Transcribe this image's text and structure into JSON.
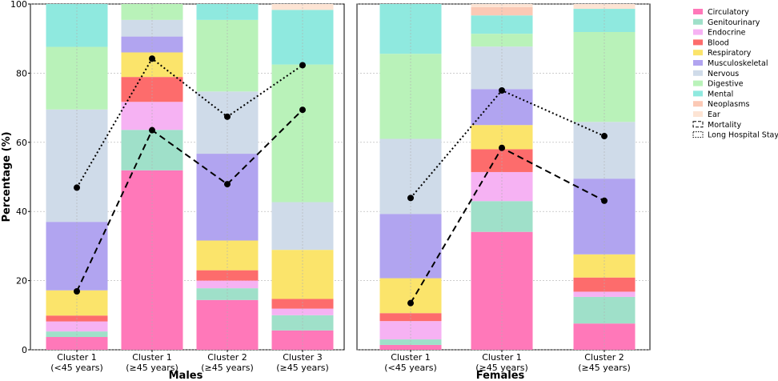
{
  "chart_data": {
    "type": "bar",
    "stacked": true,
    "ylabel": "Percentage (%)",
    "ylim": [
      0,
      100
    ],
    "yticks": [
      0,
      20,
      40,
      60,
      80,
      100
    ],
    "grid": true,
    "legend_position": "right",
    "categories_order": [
      "Circulatory",
      "Genitourinary",
      "Endocrine",
      "Blood",
      "Respiratory",
      "Musculoskeletal",
      "Nervous",
      "Digestive",
      "Mental",
      "Neoplasms",
      "Ear"
    ],
    "colors": {
      "Circulatory": "#ff78b9",
      "Genitourinary": "#9fe0c9",
      "Endocrine": "#f6b2f3",
      "Blood": "#fd6c6c",
      "Respiratory": "#fbe46b",
      "Musculoskeletal": "#b1a4f0",
      "Nervous": "#cfdbe9",
      "Digestive": "#b9f2b9",
      "Mental": "#8fe9df",
      "Neoplasms": "#fbc9b5",
      "Ear": "#fde4d4"
    },
    "legend_line_labels": [
      "Mortality",
      "Long Hospital Stay"
    ],
    "panels": [
      {
        "xlabel": "Males",
        "groups": [
          {
            "label": [
              "Cluster 1",
              "(<45 years)"
            ],
            "segments": {
              "Circulatory": 3.7,
              "Genitourinary": 1.6,
              "Endocrine": 2.9,
              "Blood": 1.7,
              "Respiratory": 7.3,
              "Musculoskeletal": 19.8,
              "Nervous": 32.5,
              "Digestive": 18.1,
              "Mental": 12.4,
              "Neoplasms": 0,
              "Ear": 0
            },
            "mortality": 16.9,
            "long_stay": 46.9
          },
          {
            "label": [
              "Cluster 1",
              "(≥45 years)"
            ],
            "segments": {
              "Circulatory": 51.9,
              "Genitourinary": 11.7,
              "Endocrine": 8.1,
              "Blood": 7.2,
              "Respiratory": 7.1,
              "Musculoskeletal": 4.6,
              "Nervous": 4.8,
              "Digestive": 4.6,
              "Mental": 0,
              "Neoplasms": 0,
              "Ear": 0
            },
            "mortality": 63.5,
            "long_stay": 84.2
          },
          {
            "label": [
              "Cluster 2",
              "(≥45 years)"
            ],
            "segments": {
              "Circulatory": 14.4,
              "Genitourinary": 3.4,
              "Endocrine": 2.2,
              "Blood": 3.0,
              "Respiratory": 8.6,
              "Musculoskeletal": 25.1,
              "Nervous": 18.0,
              "Digestive": 20.7,
              "Mental": 4.6,
              "Neoplasms": 0,
              "Ear": 0
            },
            "mortality": 47.9,
            "long_stay": 67.4
          },
          {
            "label": [
              "Cluster 3",
              "(≥45 years)"
            ],
            "segments": {
              "Circulatory": 5.6,
              "Genitourinary": 4.4,
              "Endocrine": 1.9,
              "Blood": 2.8,
              "Respiratory": 14.2,
              "Musculoskeletal": 0,
              "Nervous": 13.8,
              "Digestive": 39.8,
              "Mental": 15.8,
              "Neoplasms": 0,
              "Ear": 1.7
            },
            "mortality": 69.4,
            "long_stay": 82.3
          }
        ]
      },
      {
        "xlabel": "Females",
        "groups": [
          {
            "label": [
              "Cluster 1",
              "(<45 years)"
            ],
            "segments": {
              "Circulatory": 1.4,
              "Genitourinary": 1.6,
              "Endocrine": 5.3,
              "Blood": 2.3,
              "Respiratory": 10.1,
              "Musculoskeletal": 18.6,
              "Nervous": 21.7,
              "Digestive": 24.6,
              "Mental": 14.4,
              "Neoplasms": 0,
              "Ear": 0
            },
            "mortality": 13.5,
            "long_stay": 43.9
          },
          {
            "label": [
              "Cluster 1",
              "(≥45 years)"
            ],
            "segments": {
              "Circulatory": 34.1,
              "Genitourinary": 8.9,
              "Endocrine": 8.4,
              "Blood": 6.6,
              "Respiratory": 7.0,
              "Musculoskeletal": 10.4,
              "Nervous": 12.3,
              "Digestive": 3.7,
              "Mental": 5.3,
              "Neoplasms": 2.4,
              "Ear": 0.9
            },
            "mortality": 58.4,
            "long_stay": 75.0
          },
          {
            "label": [
              "Cluster 2",
              "(≥45 years)"
            ],
            "segments": {
              "Circulatory": 7.6,
              "Genitourinary": 7.7,
              "Endocrine": 1.5,
              "Blood": 4.1,
              "Respiratory": 6.7,
              "Musculoskeletal": 21.9,
              "Nervous": 16.4,
              "Digestive": 26.0,
              "Mental": 6.7,
              "Neoplasms": 0,
              "Ear": 1.4
            },
            "mortality": 43.1,
            "long_stay": 61.8
          }
        ]
      }
    ]
  }
}
